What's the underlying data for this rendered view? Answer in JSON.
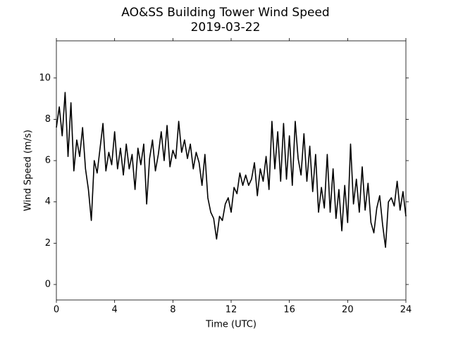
{
  "chart_data": {
    "type": "line",
    "title": "AO&SS Building Tower Wind Speed",
    "subtitle": "2019-03-22",
    "x_label": "Time (UTC)",
    "y_label": "Wind Speed (m/s)",
    "color": "#000000",
    "x": [
      0.0,
      0.2,
      0.4,
      0.6,
      0.8,
      1.0,
      1.2,
      1.4,
      1.6,
      1.8,
      2.0,
      2.2,
      2.4,
      2.6,
      2.8,
      3.0,
      3.2,
      3.4,
      3.6,
      3.8,
      4.0,
      4.2,
      4.4,
      4.6,
      4.8,
      5.0,
      5.2,
      5.4,
      5.6,
      5.8,
      6.0,
      6.2,
      6.4,
      6.6,
      6.8,
      7.0,
      7.2,
      7.4,
      7.6,
      7.8,
      8.0,
      8.2,
      8.4,
      8.6,
      8.8,
      9.0,
      9.2,
      9.4,
      9.6,
      9.8,
      10.0,
      10.2,
      10.4,
      10.6,
      10.8,
      11.0,
      11.2,
      11.4,
      11.6,
      11.8,
      12.0,
      12.2,
      12.4,
      12.6,
      12.8,
      13.0,
      13.2,
      13.4,
      13.6,
      13.8,
      14.0,
      14.2,
      14.4,
      14.6,
      14.8,
      15.0,
      15.2,
      15.4,
      15.6,
      15.8,
      16.0,
      16.2,
      16.4,
      16.6,
      16.8,
      17.0,
      17.2,
      17.4,
      17.6,
      17.8,
      18.0,
      18.2,
      18.4,
      18.6,
      18.8,
      19.0,
      19.2,
      19.4,
      19.6,
      19.8,
      20.0,
      20.2,
      20.4,
      20.6,
      20.8,
      21.0,
      21.2,
      21.4,
      21.6,
      21.8,
      22.0,
      22.2,
      22.4,
      22.6,
      22.8,
      23.0,
      23.2,
      23.4,
      23.6,
      23.8,
      24.0
    ],
    "values": [
      7.6,
      8.6,
      7.2,
      9.3,
      6.2,
      8.8,
      5.5,
      7.0,
      6.2,
      7.6,
      5.6,
      4.6,
      3.1,
      6.0,
      5.4,
      6.6,
      7.8,
      5.5,
      6.4,
      5.8,
      7.4,
      5.6,
      6.6,
      5.3,
      6.8,
      5.6,
      6.3,
      4.6,
      6.6,
      5.8,
      6.8,
      3.9,
      6.1,
      7.0,
      5.5,
      6.3,
      7.4,
      6.0,
      7.7,
      5.7,
      6.5,
      6.1,
      7.9,
      6.4,
      7.0,
      6.1,
      6.8,
      5.6,
      6.4,
      5.9,
      4.8,
      6.3,
      4.2,
      3.5,
      3.2,
      2.2,
      3.3,
      3.1,
      3.9,
      4.2,
      3.5,
      4.7,
      4.4,
      5.4,
      4.8,
      5.3,
      4.8,
      5.1,
      5.9,
      4.3,
      5.6,
      5.0,
      6.2,
      4.6,
      7.9,
      5.6,
      7.4,
      5.0,
      7.8,
      5.1,
      7.2,
      4.8,
      7.9,
      6.1,
      5.3,
      7.3,
      5.0,
      6.7,
      4.5,
      6.3,
      3.5,
      4.7,
      3.7,
      6.3,
      3.5,
      5.6,
      3.2,
      4.6,
      2.6,
      4.8,
      3.0,
      6.8,
      3.9,
      5.1,
      3.5,
      5.7,
      3.6,
      4.9,
      3.0,
      2.5,
      3.7,
      4.3,
      2.9,
      1.8,
      4.0,
      4.2,
      3.8,
      5.0,
      3.6,
      4.5,
      3.3
    ],
    "xlim": [
      0,
      24
    ],
    "xticks": [
      0,
      4,
      8,
      12,
      16,
      20,
      24
    ],
    "ylim": [
      -0.75,
      11.8
    ],
    "yticks": [
      0,
      2,
      4,
      6,
      8,
      10
    ]
  }
}
